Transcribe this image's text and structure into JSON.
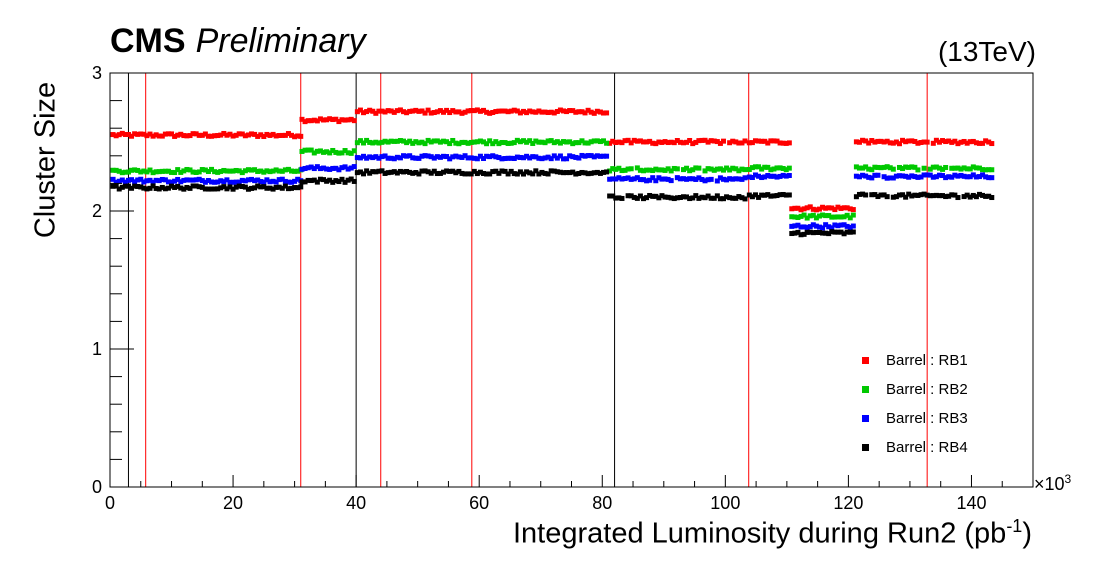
{
  "header": {
    "experiment": "CMS",
    "status": "Preliminary",
    "energy": "(13TeV)"
  },
  "axes": {
    "ylabel": "Cluster Size",
    "xlabel_main": "Integrated Luminosity during Run2 (pb",
    "xlabel_sup": "-1",
    "xlabel_close": ")",
    "x_multiplier": "×10",
    "x_multiplier_exp": "3"
  },
  "chart_data": {
    "type": "scatter",
    "xlim": [
      0,
      150000
    ],
    "ylim": [
      0,
      3
    ],
    "x_ticks": [
      0,
      20000,
      40000,
      60000,
      80000,
      100000,
      120000,
      140000
    ],
    "x_tick_labels": [
      "0",
      "20",
      "40",
      "60",
      "80",
      "100",
      "120",
      "140"
    ],
    "y_ticks": [
      0,
      1,
      2,
      3
    ],
    "y_tick_labels": [
      "0",
      "1",
      "2",
      "3"
    ],
    "legend_position": "bottom-right",
    "vertical_lines": [
      {
        "x": 3000,
        "color": "#000000"
      },
      {
        "x": 5800,
        "color": "#ff0000"
      },
      {
        "x": 31000,
        "color": "#ff0000"
      },
      {
        "x": 40000,
        "color": "#000000"
      },
      {
        "x": 44000,
        "color": "#ff0000"
      },
      {
        "x": 58800,
        "color": "#ff0000"
      },
      {
        "x": 82000,
        "color": "#000000"
      },
      {
        "x": 103800,
        "color": "#ff0000"
      },
      {
        "x": 132800,
        "color": "#ff0000"
      }
    ],
    "data_segments": [
      {
        "x_start": 500,
        "x_end": 31000,
        "gap": 0
      },
      {
        "x_start": 31200,
        "x_end": 40000,
        "gap": 0
      },
      {
        "x_start": 40200,
        "x_end": 81000,
        "gap": 0
      },
      {
        "x_start": 81200,
        "x_end": 103500,
        "gap": 1
      },
      {
        "x_start": 103900,
        "x_end": 110500,
        "gap": 0
      },
      {
        "x_start": 110800,
        "x_end": 121000,
        "gap": 0
      },
      {
        "x_start": 121300,
        "x_end": 143500,
        "gap": 1
      }
    ],
    "series": [
      {
        "name": "Barrel : RB1",
        "color": "#ff0000",
        "levels": [
          2.55,
          2.66,
          2.72,
          2.5,
          2.5,
          2.02,
          2.5
        ]
      },
      {
        "name": "Barrel : RB2",
        "color": "#00c800",
        "levels": [
          2.29,
          2.43,
          2.5,
          2.3,
          2.31,
          1.96,
          2.31
        ]
      },
      {
        "name": "Barrel : RB3",
        "color": "#0000ff",
        "levels": [
          2.22,
          2.31,
          2.39,
          2.23,
          2.25,
          1.89,
          2.25
        ]
      },
      {
        "name": "Barrel : RB4",
        "color": "#000000",
        "levels": [
          2.17,
          2.22,
          2.28,
          2.1,
          2.11,
          1.84,
          2.11
        ]
      }
    ]
  }
}
